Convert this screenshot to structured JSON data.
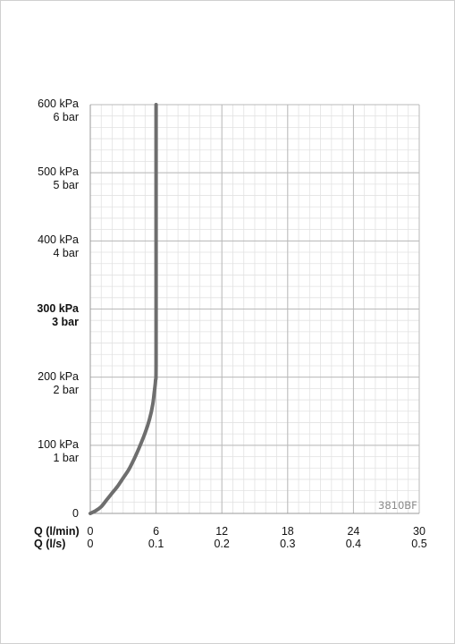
{
  "chart_data": {
    "type": "line",
    "title": "",
    "code": "3810BF",
    "x_rows": [
      {
        "label": "Q (l/min)",
        "ticks": [
          "0",
          "6",
          "12",
          "18",
          "24",
          "30"
        ]
      },
      {
        "label": "Q (l/s)",
        "ticks": [
          "0",
          "0.1",
          "0.2",
          "0.3",
          "0.4",
          "0.5"
        ]
      }
    ],
    "y_ticks": [
      {
        "value": 0,
        "kpa": "0",
        "bar": ""
      },
      {
        "value": 100,
        "kpa": "100 kPa",
        "bar": "1 bar"
      },
      {
        "value": 200,
        "kpa": "200 kPa",
        "bar": "2 bar"
      },
      {
        "value": 300,
        "kpa": "300 kPa",
        "bar": "3 bar",
        "bold": true
      },
      {
        "value": 400,
        "kpa": "400 kPa",
        "bar": "4 bar"
      },
      {
        "value": 500,
        "kpa": "500 kPa",
        "bar": "5 bar"
      },
      {
        "value": 600,
        "kpa": "600 kPa",
        "bar": "6 bar"
      }
    ],
    "xlim": [
      0,
      30
    ],
    "ylim": [
      0,
      600
    ],
    "grid": true,
    "series": [
      {
        "color": "#6e6e6e",
        "x": [
          0,
          0.5,
          1,
          1.5,
          2,
          2.5,
          3,
          3.5,
          4,
          4.5,
          5,
          5.4,
          5.7,
          5.85,
          5.95,
          6,
          6,
          6
        ],
        "y": [
          0,
          4,
          10,
          20,
          30,
          40,
          52,
          64,
          80,
          98,
          118,
          138,
          160,
          180,
          195,
          220,
          400,
          600
        ]
      }
    ]
  }
}
